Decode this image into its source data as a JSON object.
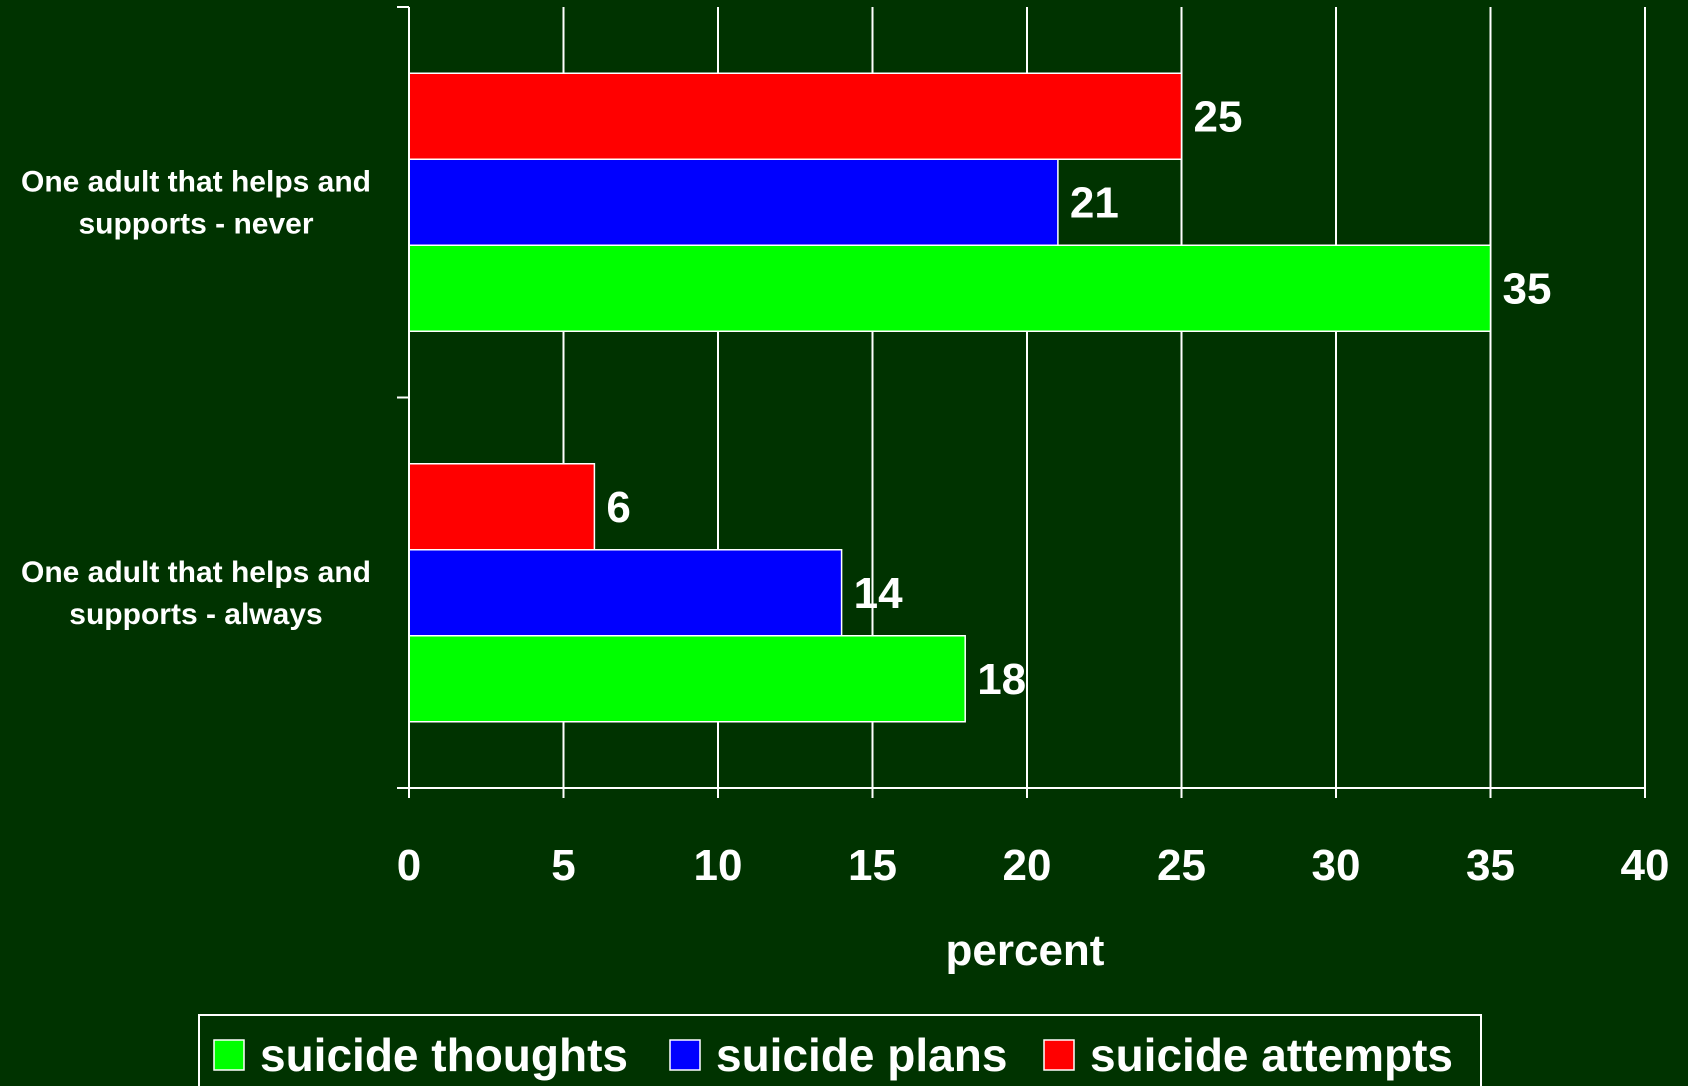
{
  "chart_data": {
    "type": "bar",
    "orientation": "horizontal",
    "categories": [
      [
        "One adult that helps and",
        "supports - never"
      ],
      [
        "One adult that helps and",
        "supports - always"
      ]
    ],
    "series": [
      {
        "name": "suicide attempts",
        "color": "#ff0000",
        "values": [
          25,
          6
        ]
      },
      {
        "name": "suicide plans",
        "color": "#0000ff",
        "values": [
          21,
          14
        ]
      },
      {
        "name": "suicide thoughts",
        "color": "#00ff00",
        "values": [
          35,
          18
        ]
      }
    ],
    "legend_order": [
      2,
      1,
      0
    ],
    "xlim": [
      0,
      40
    ],
    "xticks": [
      0,
      5,
      10,
      15,
      20,
      25,
      30,
      35,
      40
    ],
    "xlabel": "percent",
    "grid": "vertical",
    "legend_position": "bottom",
    "background": "#003300",
    "text_color": "#ffffff",
    "grid_color": "#ffffff"
  }
}
